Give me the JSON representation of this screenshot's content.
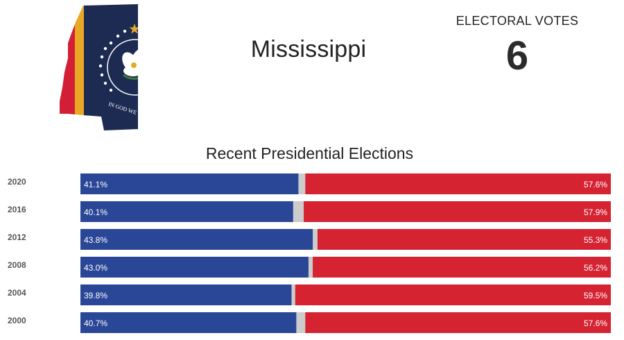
{
  "header": {
    "state_name": "Mississippi",
    "electoral_label": "ELECTORAL VOTES",
    "electoral_votes": "6"
  },
  "flag": {
    "motto": "IN GOD WE",
    "colors": {
      "navy": "#1d2b52",
      "red": "#d21f35",
      "gold": "#e8a825",
      "white": "#ffffff"
    }
  },
  "chart_data": {
    "type": "bar",
    "title": "Recent Presidential Elections",
    "categories": [
      "2020",
      "2016",
      "2012",
      "2008",
      "2004",
      "2000"
    ],
    "series": [
      {
        "values": [
          41.1,
          40.1,
          43.8,
          43.0,
          39.8,
          40.7
        ],
        "color": "#2a4696"
      },
      {
        "values": [
          57.6,
          57.9,
          55.3,
          56.2,
          59.5,
          57.6
        ],
        "color": "#d52332"
      }
    ],
    "other_color": "#cccccc",
    "value_format": "{v}%",
    "stacked": true,
    "orientation": "horizontal",
    "xlim": [
      0,
      100
    ]
  }
}
